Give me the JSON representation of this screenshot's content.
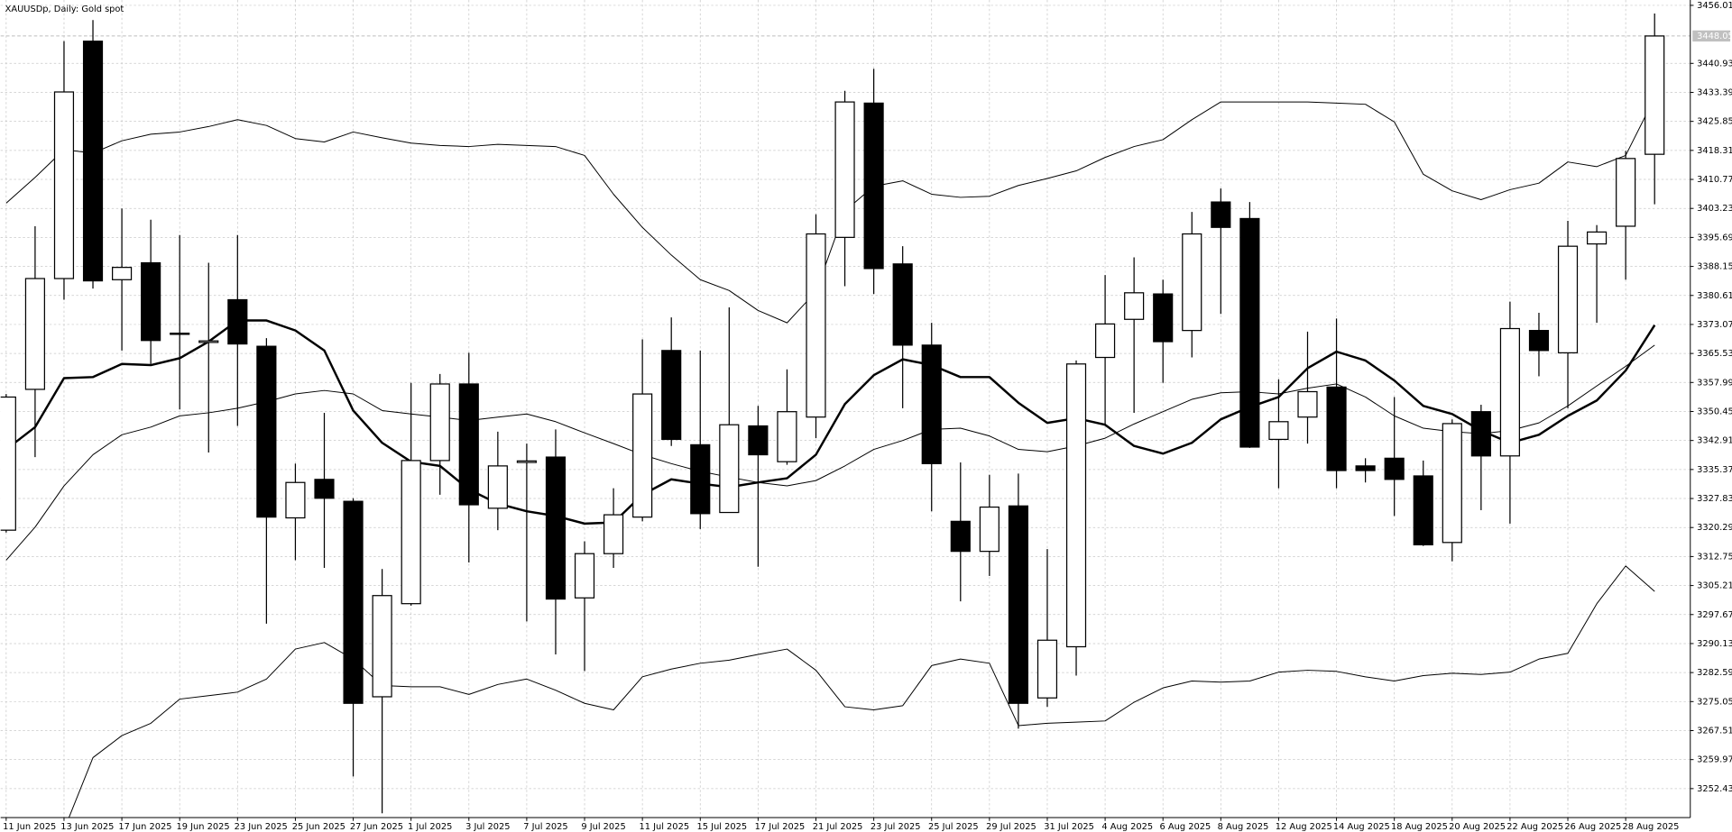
{
  "chart_data": {
    "type": "candlestick",
    "title": "XAUUSDp, Daily:  Gold spot",
    "categories": [
      "11 Jun 2025",
      null,
      "13 Jun 2025",
      null,
      "17 Jun 2025",
      null,
      "19 Jun 2025",
      null,
      "23 Jun 2025",
      null,
      "25 Jun 2025",
      null,
      "27 Jun 2025",
      null,
      "1 Jul 2025",
      null,
      "3 Jul 2025",
      null,
      "7 Jul 2025",
      null,
      "9 Jul 2025",
      null,
      "11 Jul 2025",
      null,
      "15 Jul 2025",
      null,
      "17 Jul 2025",
      null,
      "21 Jul 2025",
      null,
      "23 Jul 2025",
      null,
      "25 Jul 2025",
      null,
      "29 Jul 2025",
      null,
      "31 Jul 2025",
      null,
      "4 Aug 2025",
      null,
      "6 Aug 2025",
      null,
      "8 Aug 2025",
      null,
      "12 Aug 2025",
      null,
      "14 Aug 2025",
      null,
      "18 Aug 2025",
      null,
      "20 Aug 2025",
      null,
      "22 Aug 2025",
      null,
      "26 Aug 2025",
      null,
      "28 Aug 2025",
      null
    ],
    "open": [
      3319.6,
      3356.2,
      3385.0,
      3446.7,
      3384.7,
      3389.1,
      3370.8,
      3368.4,
      3379.5,
      3367.4,
      3322.8,
      3332.8,
      3327.1,
      3276.3,
      3300.5,
      3337.7,
      3357.6,
      3325.3,
      3337.2,
      3338.6,
      3302.0,
      3313.5,
      3323.0,
      3366.3,
      3341.8,
      3324.2,
      3346.7,
      3337.4,
      3349.0,
      3395.7,
      3430.6,
      3388.8,
      3367.7,
      3321.9,
      3314.1,
      3325.9,
      3276.0,
      3289.3,
      3364.5,
      3374.4,
      3381.0,
      3371.5,
      3404.9,
      3400.6,
      3343.2,
      3349.0,
      3356.8,
      3336.3,
      3338.3,
      3333.7,
      3316.4,
      3350.4,
      3338.9,
      3371.5,
      3365.7,
      3394.0,
      3398.6,
      3417.3
    ],
    "high": [
      3355.0,
      3398.6,
      3446.7,
      3452.2,
      3403.2,
      3400.3,
      3396.3,
      3389.1,
      3396.3,
      3369.5,
      3336.9,
      3350.1,
      3327.9,
      3309.5,
      3357.9,
      3360.2,
      3365.7,
      3345.2,
      3342.1,
      3345.8,
      3316.7,
      3330.5,
      3369.2,
      3374.9,
      3366.3,
      3377.5,
      3351.9,
      3361.4,
      3401.7,
      3433.8,
      3439.5,
      3393.4,
      3373.5,
      3337.2,
      3334.0,
      3334.3,
      3314.7,
      3363.7,
      3385.9,
      3390.5,
      3384.7,
      3402.3,
      3408.4,
      3404.9,
      3358.8,
      3371.2,
      3374.6,
      3338.3,
      3354.2,
      3337.7,
      3348.4,
      3352.2,
      3379.0,
      3376.1,
      3400.0,
      3398.9,
      3418.2,
      3453.9
    ],
    "low": [
      3319.0,
      3338.6,
      3379.5,
      3382.4,
      3366.3,
      3362.8,
      3351.0,
      3339.8,
      3346.7,
      3295.3,
      3311.8,
      3309.8,
      3255.6,
      3246.0,
      3300.0,
      3328.8,
      3311.2,
      3319.6,
      3295.9,
      3287.3,
      3283.0,
      3309.8,
      3321.9,
      3341.5,
      3319.9,
      3324.2,
      3310.1,
      3336.6,
      3343.5,
      3383.0,
      3381.0,
      3351.3,
      3324.5,
      3301.1,
      3307.7,
      3268.0,
      3273.7,
      3281.8,
      3346.7,
      3350.1,
      3357.9,
      3364.5,
      3375.8,
      3341.0,
      3330.5,
      3342.1,
      3330.5,
      3332.0,
      3323.3,
      3315.5,
      3311.5,
      3324.8,
      3321.3,
      3359.6,
      3351.3,
      3373.5,
      3384.7,
      3404.3
    ],
    "close": [
      3354.2,
      3385.0,
      3433.5,
      3384.4,
      3387.9,
      3368.9,
      3370.5,
      3368.8,
      3368.0,
      3323.0,
      3332.0,
      3327.9,
      3274.6,
      3302.6,
      3337.7,
      3357.6,
      3326.2,
      3336.3,
      3337.6,
      3301.7,
      3313.5,
      3323.6,
      3355.0,
      3343.2,
      3323.9,
      3347.0,
      3339.2,
      3350.4,
      3396.6,
      3430.9,
      3387.6,
      3367.7,
      3336.9,
      3314.1,
      3325.6,
      3274.6,
      3291.0,
      3362.8,
      3373.2,
      3381.3,
      3368.6,
      3396.6,
      3398.3,
      3341.2,
      3347.8,
      3355.6,
      3335.1,
      3335.1,
      3332.8,
      3315.8,
      3347.3,
      3338.9,
      3372.0,
      3366.3,
      3393.4,
      3397.1,
      3416.2,
      3448.05
    ],
    "up_color": "#ffffff",
    "down_color": "#000000",
    "lines": [
      {
        "color": "#000000",
        "width": 2,
        "values": [
          3340.6,
          3346.4,
          3359.1,
          3359.4,
          3362.8,
          3362.5,
          3364.3,
          3368.6,
          3374.1,
          3374.1,
          3371.5,
          3366.3,
          3350.7,
          3342.3,
          3337.4,
          3336.3,
          3330.2,
          3326.5,
          3324.5,
          3323.3,
          3321.3,
          3321.6,
          3328.8,
          3332.8,
          3331.7,
          3330.8,
          3332.0,
          3333.1,
          3339.2,
          3352.4,
          3359.9,
          3364.0,
          3362.5,
          3359.4,
          3359.4,
          3352.7,
          3347.5,
          3348.7,
          3347.0,
          3341.5,
          3339.5,
          3342.3,
          3348.4,
          3351.6,
          3354.2,
          3361.7,
          3366.0,
          3363.7,
          3358.5,
          3351.9,
          3349.8,
          3345.5,
          3342.3,
          3344.4,
          3349.3,
          3353.3,
          3361.1,
          3372.9
        ]
      },
      {
        "color": "#000000",
        "width": 0.8,
        "values": [
          3404.6,
          3411.3,
          3418.5,
          3417.6,
          3420.8,
          3422.5,
          3423.1,
          3424.5,
          3426.3,
          3424.8,
          3421.4,
          3420.5,
          3423.1,
          3421.6,
          3420.2,
          3419.6,
          3419.3,
          3419.9,
          3419.6,
          3419.3,
          3417.0,
          3406.9,
          3398.3,
          3391.1,
          3384.7,
          3381.9,
          3376.7,
          3373.5,
          3381.6,
          3402.6,
          3409.0,
          3410.4,
          3406.9,
          3406.1,
          3406.4,
          3409.2,
          3411.0,
          3413.0,
          3416.5,
          3419.3,
          3421.1,
          3426.3,
          3430.9,
          3430.9,
          3430.9,
          3430.9,
          3430.6,
          3430.3,
          3425.7,
          3412.1,
          3407.8,
          3405.5,
          3408.1,
          3409.8,
          3415.3,
          3414.1,
          3417.0,
          3432.0
        ]
      },
      {
        "color": "#000000",
        "width": 0.8,
        "values": [
          3311.8,
          3320.4,
          3331.1,
          3339.2,
          3344.4,
          3346.4,
          3349.3,
          3350.1,
          3351.3,
          3353.0,
          3355.0,
          3355.9,
          3355.0,
          3350.7,
          3349.8,
          3349.0,
          3348.1,
          3349.0,
          3349.8,
          3347.8,
          3344.9,
          3342.1,
          3339.2,
          3336.9,
          3334.9,
          3333.4,
          3332.0,
          3331.1,
          3332.5,
          3336.3,
          3340.6,
          3342.9,
          3345.8,
          3346.1,
          3344.1,
          3340.6,
          3340.0,
          3341.5,
          3343.5,
          3347.2,
          3350.4,
          3353.6,
          3355.3,
          3355.6,
          3355.0,
          3356.5,
          3357.6,
          3354.2,
          3349.3,
          3346.1,
          3345.2,
          3344.7,
          3345.5,
          3347.5,
          3351.9,
          3357.1,
          3362.2,
          3367.7
        ]
      },
      {
        "color": "#000000",
        "width": 0.8,
        "values": [
          null,
          null,
          3241.7,
          3260.5,
          3266.2,
          3269.4,
          3275.7,
          3276.6,
          3277.5,
          3280.9,
          3288.7,
          3290.4,
          3286.1,
          3279.2,
          3278.9,
          3278.9,
          3276.9,
          3279.5,
          3280.9,
          3278.0,
          3274.6,
          3272.9,
          3281.5,
          3283.5,
          3285.0,
          3285.8,
          3287.3,
          3288.7,
          3283.2,
          3273.7,
          3272.9,
          3274.0,
          3284.4,
          3286.1,
          3285.0,
          3268.8,
          3269.4,
          3269.7,
          3270.0,
          3274.9,
          3278.6,
          3280.4,
          3280.1,
          3280.4,
          3282.7,
          3283.2,
          3282.9,
          3281.5,
          3280.4,
          3281.8,
          3282.4,
          3282.1,
          3282.7,
          3286.1,
          3287.6,
          3300.5,
          3310.3,
          3303.7
        ]
      }
    ],
    "last_price": 3448.05,
    "ylim": [
      3244.9,
      3457.4
    ],
    "yticks": [
      3456.01,
      3440.93,
      3433.39,
      3425.85,
      3418.31,
      3410.77,
      3403.23,
      3395.69,
      3388.15,
      3380.61,
      3373.07,
      3365.53,
      3357.99,
      3350.45,
      3342.91,
      3335.37,
      3327.83,
      3320.29,
      3312.75,
      3305.21,
      3297.67,
      3290.13,
      3282.59,
      3275.05,
      3267.51,
      3259.97,
      3252.43
    ],
    "grid": true
  }
}
